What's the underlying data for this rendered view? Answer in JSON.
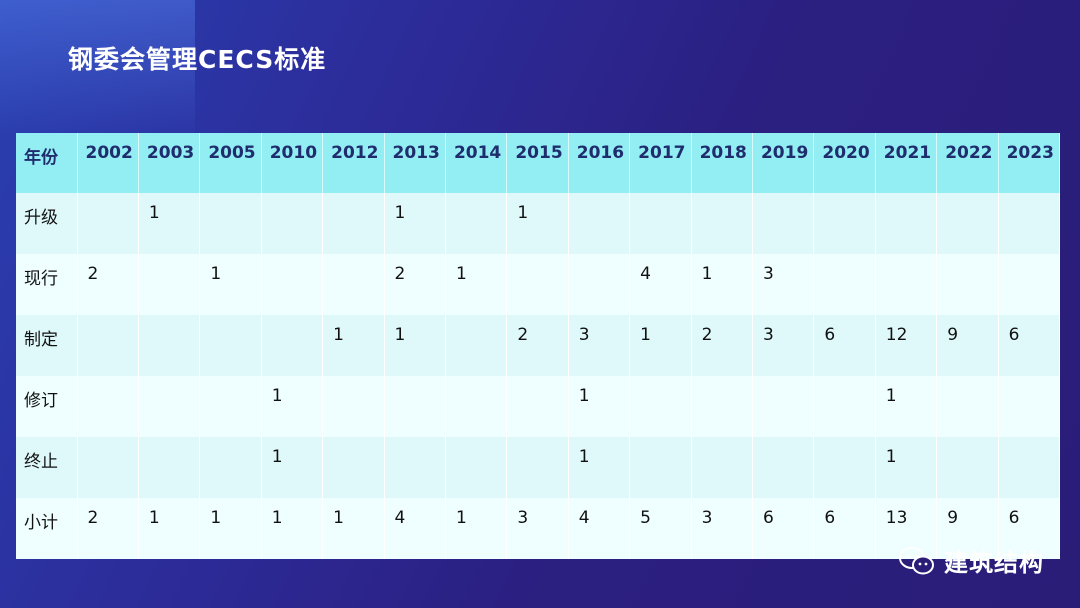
{
  "title": "钢委会管理CECS标准",
  "table": {
    "header_label": "年份",
    "years": [
      "2002",
      "2003",
      "2005",
      "2010",
      "2012",
      "2013",
      "2014",
      "2015",
      "2016",
      "2017",
      "2018",
      "2019",
      "2020",
      "2021",
      "2022",
      "2023"
    ],
    "rows": [
      {
        "label": "升级",
        "cells": [
          "",
          "1",
          "",
          "",
          "",
          "1",
          "",
          "1",
          "",
          "",
          "",
          "",
          "",
          "",
          "",
          ""
        ]
      },
      {
        "label": "现行",
        "cells": [
          "2",
          "",
          "1",
          "",
          "",
          "2",
          "1",
          "",
          "",
          "4",
          "1",
          "3",
          "",
          "",
          "",
          ""
        ]
      },
      {
        "label": "制定",
        "cells": [
          "",
          "",
          "",
          "",
          "1",
          "1",
          "",
          "2",
          "3",
          "1",
          "2",
          "3",
          "6",
          "12",
          "9",
          "6"
        ]
      },
      {
        "label": "修订",
        "cells": [
          "",
          "",
          "",
          "1",
          "",
          "",
          "",
          "",
          "1",
          "",
          "",
          "",
          "",
          "1",
          "",
          ""
        ]
      },
      {
        "label": "终止",
        "cells": [
          "",
          "",
          "",
          "1",
          "",
          "",
          "",
          "",
          "1",
          "",
          "",
          "",
          "",
          "1",
          "",
          ""
        ]
      },
      {
        "label": "小计",
        "cells": [
          "2",
          "1",
          "1",
          "1",
          "1",
          "4",
          "1",
          "3",
          "4",
          "5",
          "3",
          "6",
          "6",
          "13",
          "9",
          "6"
        ]
      }
    ]
  },
  "watermark": {
    "text": "建筑结构",
    "icon": "wechat-icon"
  },
  "colors": {
    "header_bg": "#92eef2",
    "row_odd": "#dff9fb",
    "row_even": "#effefe",
    "header_text": "#1f2d6e"
  }
}
